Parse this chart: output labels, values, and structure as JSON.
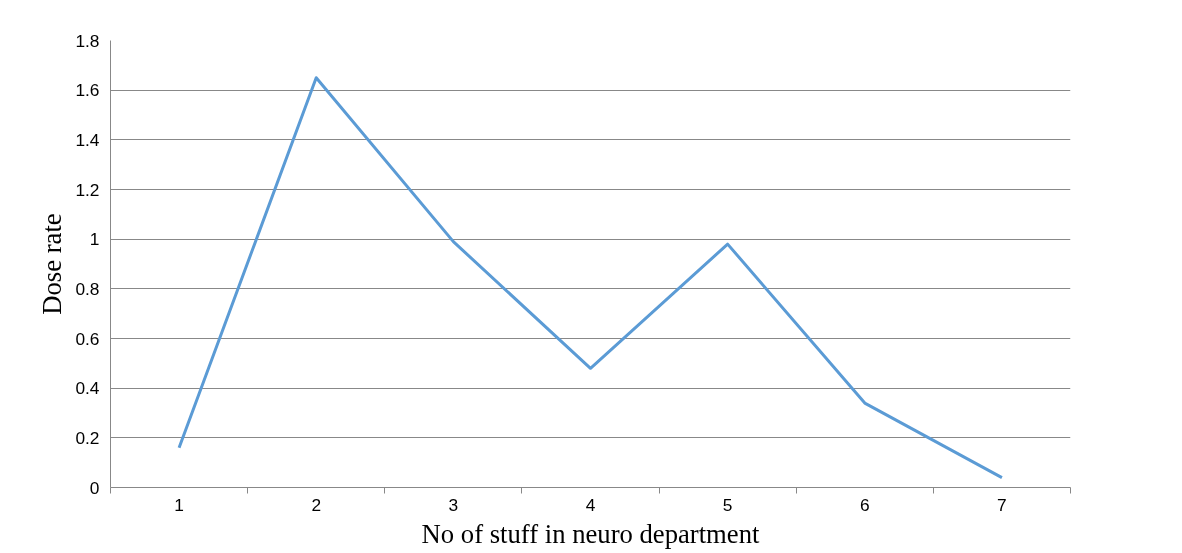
{
  "chart_data": {
    "type": "line",
    "xlabel": "No of stuff in neuro department",
    "ylabel": "Dose rate",
    "categories": [
      "1",
      "2",
      "3",
      "4",
      "5",
      "6",
      "7"
    ],
    "series": [
      {
        "color": "#5b9bd5",
        "values": [
          0.16,
          1.65,
          0.99,
          0.48,
          0.98,
          0.34,
          0.04
        ]
      }
    ],
    "ylim": [
      0,
      1.8
    ],
    "yticks": [
      0,
      0.2,
      0.4,
      0.6,
      0.8,
      1,
      1.2,
      1.4,
      1.6,
      1.8
    ],
    "grid": "y",
    "marker": "none",
    "line_style": "solid"
  }
}
